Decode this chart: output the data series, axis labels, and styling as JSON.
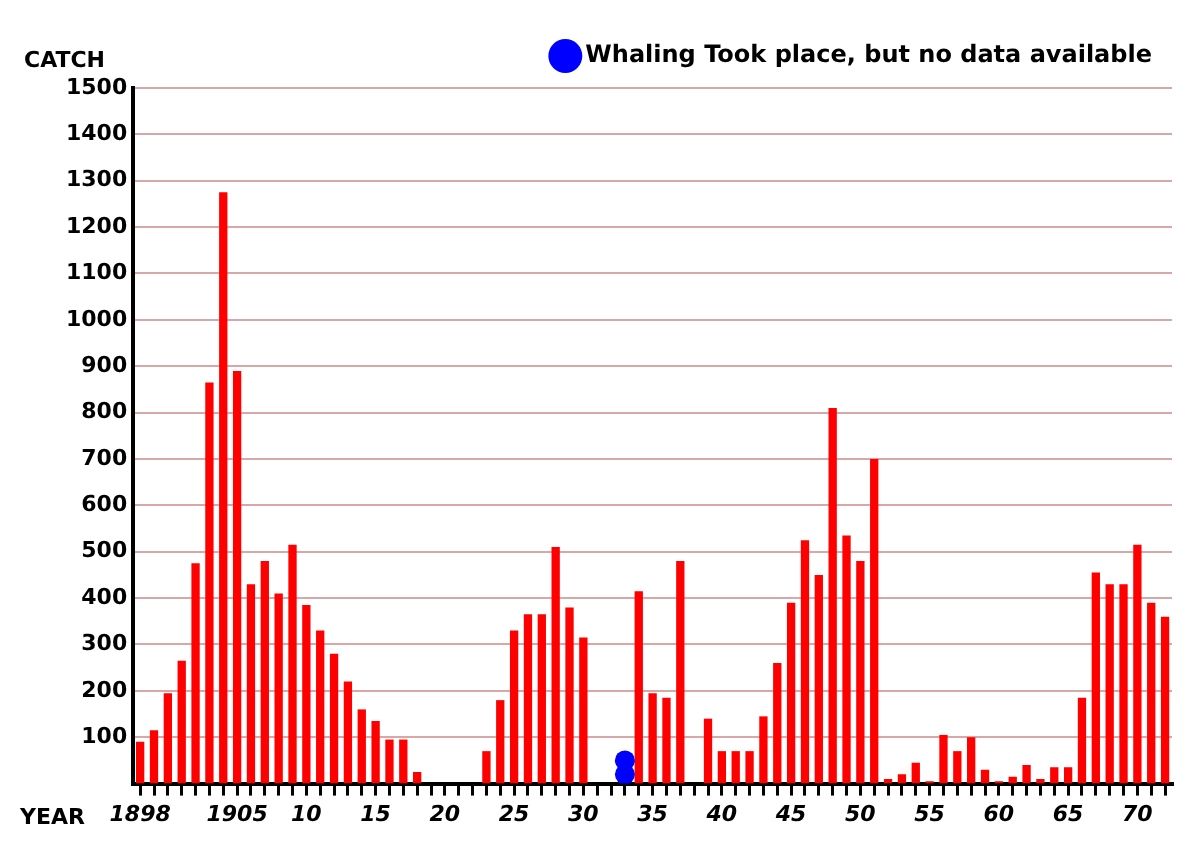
{
  "chart_data": {
    "type": "bar",
    "xlabel": "YEAR",
    "ylabel": "CATCH",
    "categories": [
      "1898",
      null,
      null,
      null,
      null,
      null,
      null,
      "1905",
      null,
      null,
      null,
      null,
      "10",
      null,
      null,
      null,
      null,
      "15",
      null,
      null,
      null,
      null,
      "20",
      null,
      null,
      null,
      null,
      "25",
      null,
      null,
      null,
      null,
      "30",
      null,
      null,
      null,
      null,
      "35",
      null,
      null,
      null,
      null,
      "40",
      null,
      null,
      null,
      null,
      "45",
      null,
      null,
      null,
      null,
      "50",
      null,
      null,
      null,
      null,
      "55",
      null,
      null,
      null,
      null,
      "60",
      null,
      null,
      null,
      null,
      "65",
      null,
      null,
      null,
      null,
      "70",
      null,
      null
    ],
    "series": [
      {
        "color": "#ff0000",
        "values": [
          90,
          115,
          195,
          265,
          475,
          865,
          1275,
          890,
          430,
          480,
          410,
          515,
          385,
          330,
          280,
          220,
          160,
          135,
          95,
          95,
          25,
          0,
          0,
          0,
          0,
          70,
          180,
          330,
          365,
          365,
          510,
          380,
          315,
          0,
          0,
          null,
          415,
          195,
          185,
          480,
          0,
          140,
          70,
          70,
          70,
          145,
          260,
          390,
          525,
          450,
          810,
          535,
          480,
          700,
          10,
          20,
          45,
          5,
          105,
          70,
          100,
          30,
          5,
          15,
          40,
          10,
          35,
          35,
          185,
          455,
          430,
          430,
          515,
          390,
          360
        ]
      },
      {
        "type": "scatter",
        "name": "Whaling Took place, but no data available",
        "color": "#0000ff",
        "values": [
          null,
          null,
          null,
          null,
          null,
          null,
          null,
          null,
          null,
          null,
          null,
          null,
          null,
          null,
          null,
          null,
          null,
          null,
          null,
          null,
          null,
          null,
          null,
          null,
          null,
          null,
          null,
          null,
          null,
          null,
          null,
          null,
          null,
          null,
          null,
          50,
          null,
          null,
          null,
          null,
          null,
          null,
          null,
          null,
          null,
          null,
          null,
          null,
          null,
          null,
          null,
          null,
          null,
          null,
          null,
          null,
          null,
          null,
          null,
          null,
          null,
          null,
          null,
          null,
          null,
          null,
          null,
          null,
          null,
          null,
          null,
          null,
          null,
          null,
          null
        ]
      },
      {
        "type": "scatter",
        "color": "#0000ff",
        "values": [
          null,
          null,
          null,
          null,
          null,
          null,
          null,
          null,
          null,
          null,
          null,
          null,
          null,
          null,
          null,
          null,
          null,
          null,
          null,
          null,
          null,
          null,
          null,
          null,
          null,
          null,
          null,
          null,
          null,
          null,
          null,
          null,
          null,
          null,
          null,
          20,
          null,
          null,
          null,
          null,
          null,
          null,
          null,
          null,
          null,
          null,
          null,
          null,
          null,
          null,
          null,
          null,
          null,
          null,
          null,
          null,
          null,
          null,
          null,
          null,
          null,
          null,
          null,
          null,
          null,
          null,
          null,
          null,
          null,
          null,
          null,
          null,
          null,
          null,
          null
        ]
      }
    ],
    "ylim": [
      0,
      1500
    ],
    "yticks": [
      100,
      200,
      300,
      400,
      500,
      600,
      700,
      800,
      900,
      1000,
      1100,
      1200,
      1300,
      1400,
      1500
    ],
    "grid": "y",
    "legend": "top right",
    "marker": "circle"
  }
}
